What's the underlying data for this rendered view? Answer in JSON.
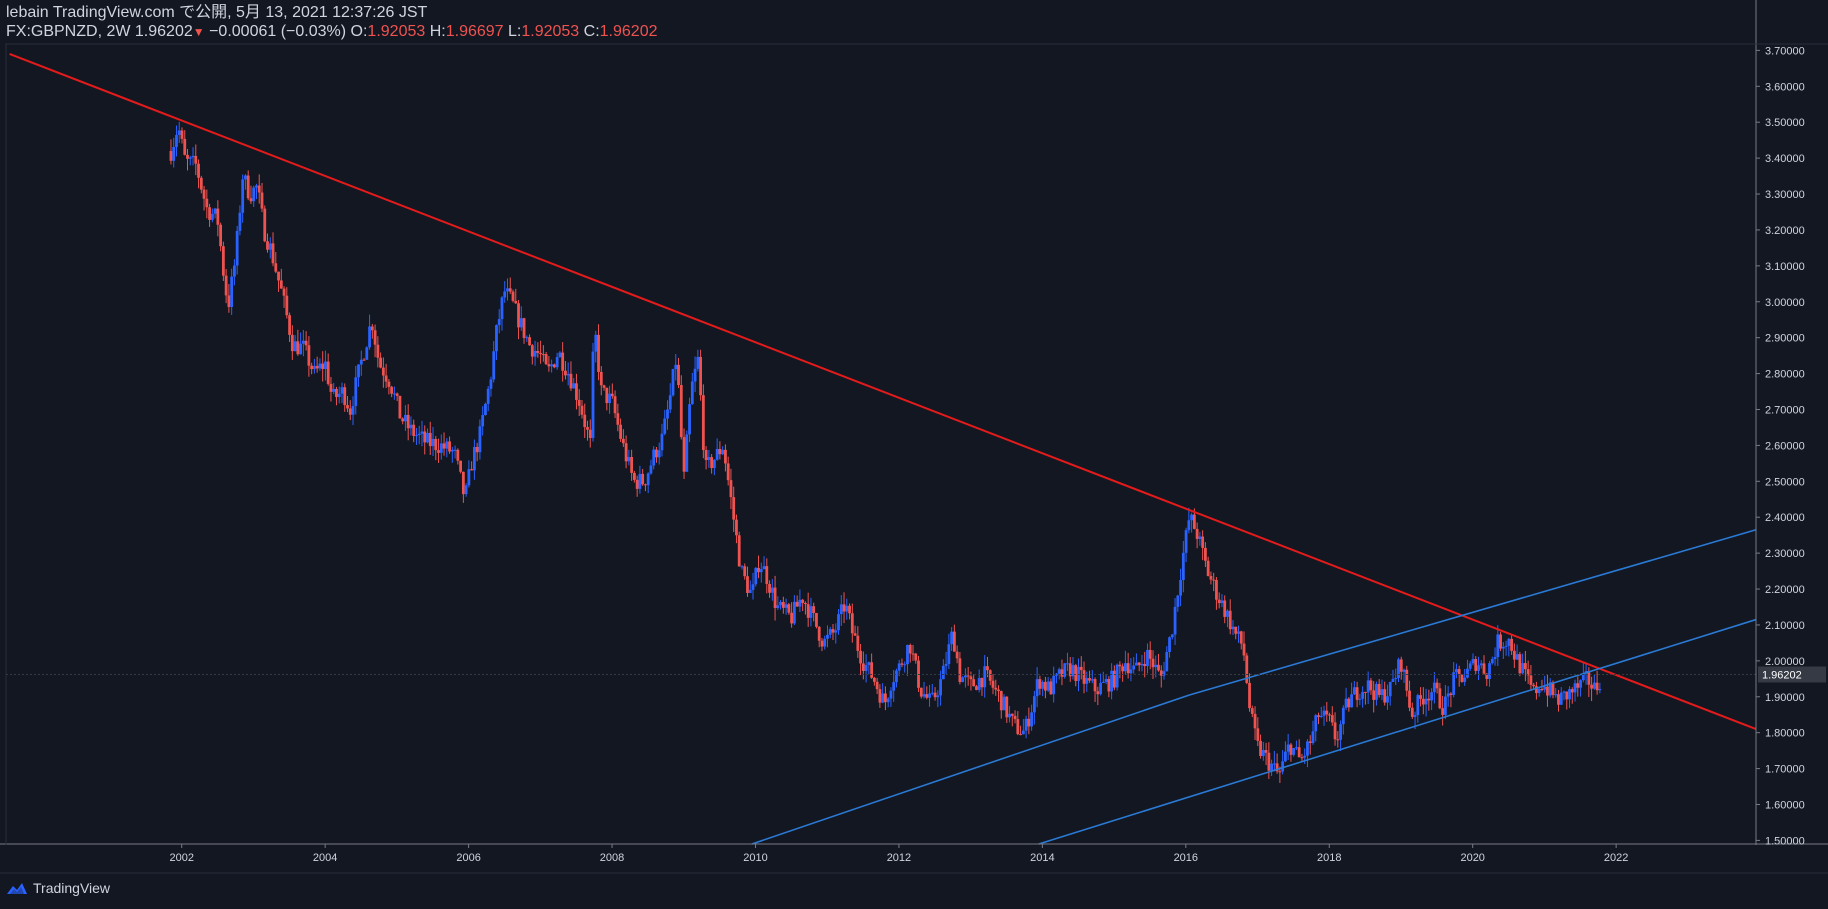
{
  "header": {
    "line1": "lebain TradingView.com で公開, 5月 13, 2021 12:37:26 JST",
    "symbol_prefix": "FX:GBPNZD, 2W 1.96202",
    "change_arrow": "▼",
    "change": "−0.00061 (−0.03%)",
    "o_label": "O:",
    "o_value": "1.92053",
    "h_label": "H:",
    "h_value": "1.96697",
    "l_label": "L:",
    "l_value": "1.92053",
    "c_label": "C:",
    "c_value": "1.96202"
  },
  "brand": {
    "name": "TradingView",
    "icon": "tradingview-logo-icon"
  },
  "colors": {
    "background": "#131722",
    "bull": "#2962ff",
    "bear": "#ef5350",
    "resistance_line": "#e31b1b",
    "channel_line": "#2a7ad5",
    "text": "#d1d4dc",
    "last_price_bg": "#363a45"
  },
  "chart_data": {
    "type": "candlestick",
    "title": "",
    "interval": "2W",
    "xlabel": "",
    "ylabel": "",
    "xlim": [
      1999.55,
      2023.95
    ],
    "ylim": [
      1.49,
      3.715
    ],
    "x_ticks": [
      2002,
      2004,
      2006,
      2008,
      2010,
      2012,
      2014,
      2016,
      2018,
      2020,
      2022
    ],
    "x_tick_labels": [
      "2002",
      "2004",
      "2006",
      "2008",
      "2010",
      "2012",
      "2014",
      "2016",
      "2018",
      "2020",
      "2022"
    ],
    "y_ticks": [
      1.5,
      1.6,
      1.7,
      1.8,
      1.9,
      2.0,
      2.1,
      2.2,
      2.3,
      2.4,
      2.5,
      2.6,
      2.7,
      2.8,
      2.9,
      3.0,
      3.1,
      3.2,
      3.3,
      3.4,
      3.5,
      3.6,
      3.7
    ],
    "y_tick_labels": [
      "1.50000",
      "1.60000",
      "1.70000",
      "1.80000",
      "1.90000",
      "2.00000",
      "2.10000",
      "2.20000",
      "2.30000",
      "2.40000",
      "2.50000",
      "2.60000",
      "2.70000",
      "2.80000",
      "2.90000",
      "3.00000",
      "3.10000",
      "3.20000",
      "3.30000",
      "3.40000",
      "3.50000",
      "3.60000",
      "3.70000"
    ],
    "last_price": 1.96202,
    "last_price_label": "1.96202",
    "grid": false,
    "trend_lines": [
      {
        "role": "resistance",
        "color": "#e31b1b",
        "points": [
          [
            1999.6,
            3.69
          ],
          [
            2023.95,
            1.81
          ]
        ]
      },
      {
        "role": "channel-upper",
        "color": "#2a7ad5",
        "points": [
          [
            2016.05,
            1.905
          ],
          [
            2023.95,
            2.365
          ]
        ]
      },
      {
        "role": "channel-lower-extended",
        "color": "#2a7ad5",
        "points": [
          [
            2009.95,
            1.49
          ],
          [
            2016.05,
            1.905
          ]
        ]
      },
      {
        "role": "channel-lower",
        "color": "#2a7ad5",
        "points": [
          [
            2013.95,
            1.49
          ],
          [
            2023.95,
            2.115
          ]
        ]
      }
    ],
    "price_path": [
      [
        2001.85,
        3.42
      ],
      [
        2001.95,
        3.49
      ],
      [
        2002.05,
        3.39
      ],
      [
        2002.2,
        3.38
      ],
      [
        2002.35,
        3.26
      ],
      [
        2002.5,
        3.23
      ],
      [
        2002.6,
        3.05
      ],
      [
        2002.65,
        2.99
      ],
      [
        2002.75,
        3.12
      ],
      [
        2002.85,
        3.35
      ],
      [
        2002.95,
        3.3
      ],
      [
        2003.05,
        3.32
      ],
      [
        2003.15,
        3.2
      ],
      [
        2003.25,
        3.14
      ],
      [
        2003.4,
        3.02
      ],
      [
        2003.55,
        2.88
      ],
      [
        2003.7,
        2.87
      ],
      [
        2003.85,
        2.8
      ],
      [
        2004.0,
        2.83
      ],
      [
        2004.1,
        2.73
      ],
      [
        2004.25,
        2.75
      ],
      [
        2004.35,
        2.7
      ],
      [
        2004.5,
        2.83
      ],
      [
        2004.65,
        2.95
      ],
      [
        2004.75,
        2.83
      ],
      [
        2004.9,
        2.78
      ],
      [
        2005.05,
        2.68
      ],
      [
        2005.2,
        2.64
      ],
      [
        2005.4,
        2.61
      ],
      [
        2005.6,
        2.6
      ],
      [
        2005.8,
        2.58
      ],
      [
        2005.95,
        2.45
      ],
      [
        2006.05,
        2.56
      ],
      [
        2006.15,
        2.62
      ],
      [
        2006.3,
        2.78
      ],
      [
        2006.4,
        2.93
      ],
      [
        2006.5,
        3.03
      ],
      [
        2006.6,
        3.0
      ],
      [
        2006.7,
        2.95
      ],
      [
        2006.85,
        2.88
      ],
      [
        2007.0,
        2.85
      ],
      [
        2007.1,
        2.8
      ],
      [
        2007.25,
        2.86
      ],
      [
        2007.4,
        2.8
      ],
      [
        2007.55,
        2.72
      ],
      [
        2007.7,
        2.6
      ],
      [
        2007.75,
        2.94
      ],
      [
        2007.85,
        2.75
      ],
      [
        2008.0,
        2.72
      ],
      [
        2008.15,
        2.6
      ],
      [
        2008.3,
        2.5
      ],
      [
        2008.45,
        2.5
      ],
      [
        2008.6,
        2.58
      ],
      [
        2008.7,
        2.62
      ],
      [
        2008.8,
        2.72
      ],
      [
        2008.9,
        2.85
      ],
      [
        2009.0,
        2.5
      ],
      [
        2009.1,
        2.75
      ],
      [
        2009.2,
        2.84
      ],
      [
        2009.3,
        2.53
      ],
      [
        2009.45,
        2.57
      ],
      [
        2009.55,
        2.6
      ],
      [
        2009.7,
        2.39
      ],
      [
        2009.8,
        2.25
      ],
      [
        2009.95,
        2.18
      ],
      [
        2010.05,
        2.28
      ],
      [
        2010.15,
        2.24
      ],
      [
        2010.3,
        2.15
      ],
      [
        2010.5,
        2.12
      ],
      [
        2010.65,
        2.18
      ],
      [
        2010.8,
        2.12
      ],
      [
        2010.95,
        2.05
      ],
      [
        2011.1,
        2.08
      ],
      [
        2011.25,
        2.16
      ],
      [
        2011.35,
        2.08
      ],
      [
        2011.5,
        2.0
      ],
      [
        2011.65,
        1.95
      ],
      [
        2011.8,
        1.88
      ],
      [
        2011.9,
        1.95
      ],
      [
        2012.0,
        1.98
      ],
      [
        2012.15,
        2.05
      ],
      [
        2012.3,
        1.92
      ],
      [
        2012.45,
        1.88
      ],
      [
        2012.6,
        1.95
      ],
      [
        2012.75,
        2.08
      ],
      [
        2012.85,
        1.96
      ],
      [
        2013.0,
        1.93
      ],
      [
        2013.2,
        1.96
      ],
      [
        2013.4,
        1.9
      ],
      [
        2013.6,
        1.82
      ],
      [
        2013.75,
        1.8
      ],
      [
        2013.85,
        1.87
      ],
      [
        2013.95,
        1.95
      ],
      [
        2014.1,
        1.92
      ],
      [
        2014.25,
        1.96
      ],
      [
        2014.4,
        1.98
      ],
      [
        2014.55,
        1.95
      ],
      [
        2014.75,
        1.92
      ],
      [
        2015.0,
        1.95
      ],
      [
        2015.15,
        2.0
      ],
      [
        2015.3,
        1.97
      ],
      [
        2015.45,
        2.02
      ],
      [
        2015.55,
        1.99
      ],
      [
        2015.65,
        1.95
      ],
      [
        2015.8,
        2.08
      ],
      [
        2015.95,
        2.28
      ],
      [
        2016.05,
        2.4
      ],
      [
        2016.15,
        2.36
      ],
      [
        2016.3,
        2.25
      ],
      [
        2016.45,
        2.18
      ],
      [
        2016.55,
        2.14
      ],
      [
        2016.7,
        2.07
      ],
      [
        2016.8,
        2.04
      ],
      [
        2016.9,
        1.85
      ],
      [
        2017.0,
        1.76
      ],
      [
        2017.15,
        1.72
      ],
      [
        2017.3,
        1.68
      ],
      [
        2017.45,
        1.77
      ],
      [
        2017.6,
        1.72
      ],
      [
        2017.75,
        1.78
      ],
      [
        2017.85,
        1.85
      ],
      [
        2018.0,
        1.83
      ],
      [
        2018.1,
        1.78
      ],
      [
        2018.25,
        1.88
      ],
      [
        2018.4,
        1.92
      ],
      [
        2018.55,
        1.93
      ],
      [
        2018.7,
        1.9
      ],
      [
        2018.85,
        1.92
      ],
      [
        2019.0,
        2.0
      ],
      [
        2019.15,
        1.85
      ],
      [
        2019.3,
        1.9
      ],
      [
        2019.45,
        1.92
      ],
      [
        2019.6,
        1.87
      ],
      [
        2019.75,
        1.95
      ],
      [
        2019.9,
        1.96
      ],
      [
        2020.05,
        2.0
      ],
      [
        2020.2,
        1.97
      ],
      [
        2020.35,
        2.05
      ],
      [
        2020.5,
        2.06
      ],
      [
        2020.6,
        2.01
      ],
      [
        2020.75,
        1.95
      ],
      [
        2020.85,
        1.91
      ],
      [
        2020.95,
        1.94
      ],
      [
        2021.05,
        1.92
      ],
      [
        2021.2,
        1.89
      ],
      [
        2021.35,
        1.91
      ],
      [
        2021.5,
        1.93
      ],
      [
        2021.6,
        1.95
      ],
      [
        2021.7,
        1.92
      ],
      [
        2021.8,
        1.96
      ]
    ]
  }
}
